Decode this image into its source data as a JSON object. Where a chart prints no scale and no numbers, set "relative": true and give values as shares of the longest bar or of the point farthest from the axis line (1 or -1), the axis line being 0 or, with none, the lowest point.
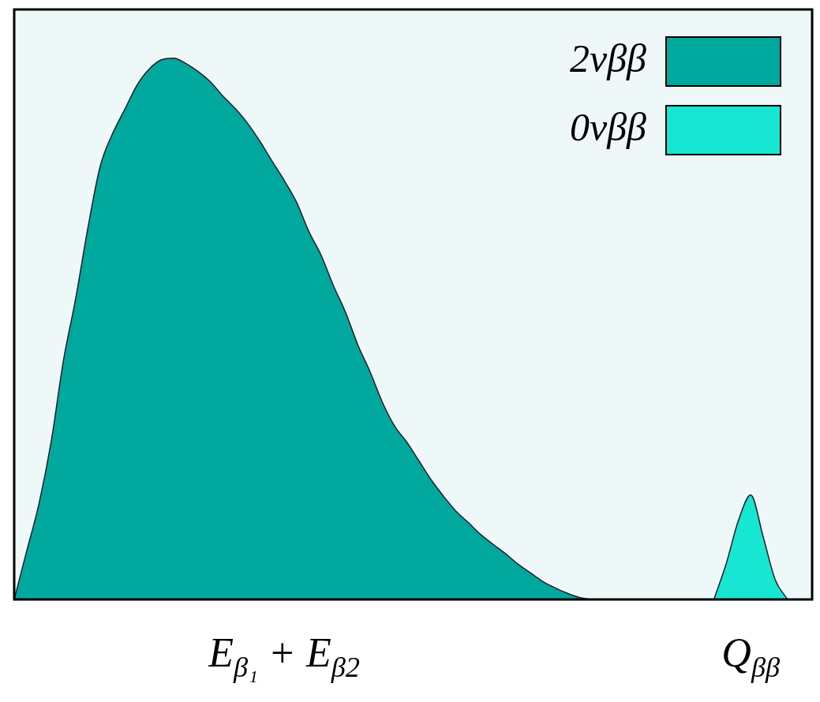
{
  "chart_data": {
    "type": "area",
    "relative": true,
    "grid": false,
    "legend": "top right",
    "categories": [
      null,
      null,
      null,
      null,
      null,
      null,
      null,
      null,
      null,
      null,
      null,
      null,
      null,
      null,
      null,
      null,
      null,
      null,
      null,
      null,
      null,
      null,
      "E$_{β₁}$ + E$_{β2}$",
      null,
      null,
      null,
      null,
      null,
      null,
      null,
      null,
      null,
      null,
      null,
      null,
      null,
      null,
      null,
      null,
      null,
      null,
      null,
      null,
      null,
      null,
      null,
      null,
      null,
      null,
      null,
      null,
      null,
      null,
      null,
      null,
      null,
      null,
      null,
      null,
      null,
      "Q$_{ββ}$",
      null,
      null,
      null,
      null,
      null
    ],
    "series": [
      {
        "name": "2νββ",
        "color": "#00a89e",
        "values": [
          0,
          0.088,
          0.175,
          0.29,
          0.44,
          0.555,
          0.686,
          0.8,
          0.86,
          0.905,
          0.95,
          0.98,
          0.997,
          1,
          0.99,
          0.975,
          0.956,
          0.93,
          0.907,
          0.88,
          0.847,
          0.81,
          0.774,
          0.734,
          0.68,
          0.636,
          0.58,
          0.53,
          0.47,
          0.42,
          0.364,
          0.32,
          0.29,
          0.255,
          0.22,
          0.19,
          0.163,
          0.142,
          0.12,
          0.102,
          0.085,
          0.066,
          0.05,
          0.034,
          0.022,
          0.012,
          0.004,
          0,
          null,
          null,
          null,
          null,
          null,
          null,
          null,
          null,
          null,
          null,
          null,
          null,
          null,
          null,
          null,
          null,
          null,
          null
        ]
      },
      {
        "name": "0νββ",
        "color": "#17e6d2",
        "values": [
          null,
          null,
          null,
          null,
          null,
          null,
          null,
          null,
          null,
          null,
          null,
          null,
          null,
          null,
          null,
          null,
          null,
          null,
          null,
          null,
          null,
          null,
          null,
          null,
          null,
          null,
          null,
          null,
          null,
          null,
          null,
          null,
          null,
          null,
          null,
          null,
          null,
          null,
          null,
          null,
          null,
          null,
          null,
          null,
          null,
          null,
          null,
          null,
          null,
          null,
          null,
          null,
          null,
          null,
          null,
          null,
          null,
          0,
          0.066,
          0.146,
          0.193,
          0.117,
          0.036,
          0,
          null,
          null
        ]
      }
    ]
  }
}
